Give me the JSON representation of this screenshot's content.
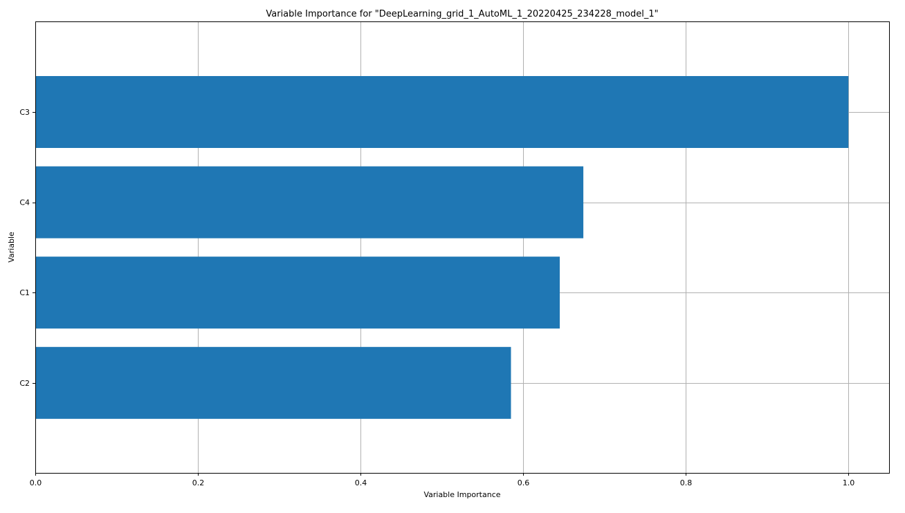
{
  "chart_data": {
    "type": "bar",
    "orientation": "horizontal",
    "title": "Variable Importance for \"DeepLearning_grid_1_AutoML_1_20220425_234228_model_1\"",
    "xlabel": "Variable Importance",
    "ylabel": "Variable",
    "categories": [
      "C3",
      "C4",
      "C1",
      "C2"
    ],
    "values": [
      1.0,
      0.674,
      0.645,
      0.585
    ],
    "xlim": [
      0.0,
      1.05
    ],
    "xticks": [
      0.0,
      0.2,
      0.4,
      0.6,
      0.8,
      1.0
    ],
    "xtick_labels": [
      "0.0",
      "0.2",
      "0.4",
      "0.6",
      "0.8",
      "1.0"
    ],
    "grid": true,
    "bar_color": "#1f77b4",
    "grid_color": "#b0b0b0",
    "axis_color": "#000000"
  }
}
